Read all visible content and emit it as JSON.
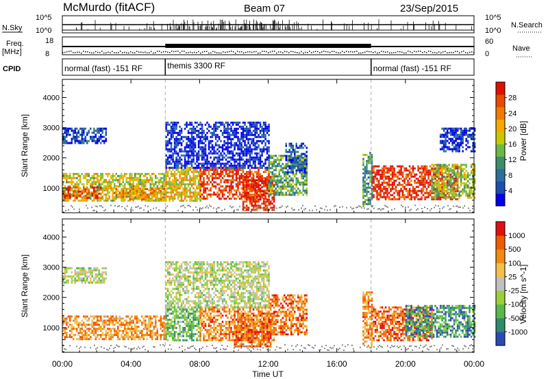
{
  "header": {
    "station": "McMurdo (fitACF)",
    "beam": "Beam 07",
    "date": "23/Sep/2015"
  },
  "top_panels": {
    "nsky_label": "N.Sky",
    "nsearch_label": "N.Search",
    "nsky_ticks": [
      "10^5",
      "10^0"
    ],
    "nsearch_ticks": [
      "10^5",
      "10^0"
    ],
    "freq_label": "Freq.",
    "freq_unit": "[MHz]",
    "freq_ticks": [
      "18",
      "8"
    ],
    "nave_label": "Nave",
    "nave_ticks": [
      "60",
      "0"
    ],
    "cpid_label": "CPID",
    "cpid_segments": [
      {
        "label": "normal (fast) -151 RF",
        "start_h": 0,
        "end_h": 6
      },
      {
        "label": "themis 3300 RF",
        "start_h": 6,
        "end_h": 18
      },
      {
        "label": "normal (fast) -151 RF",
        "start_h": 18,
        "end_h": 24
      }
    ]
  },
  "chart_data": [
    {
      "type": "heatmap",
      "ylabel": "Slant Range [km]",
      "xlabel": "Time UT",
      "x_range_hours": [
        0,
        24
      ],
      "ylim": [
        180,
        4600
      ],
      "y_ticks": [
        1000,
        2000,
        3000,
        4000
      ],
      "x_tick_labels": [
        "00:00",
        "04:00",
        "08:00",
        "12:00",
        "16:00",
        "20:00",
        "00:00"
      ],
      "colorbar": {
        "label": "Power [dB]",
        "ticks": [
          "4",
          "8",
          "12",
          "16",
          "20",
          "24",
          "28"
        ],
        "colors": [
          "#0000ee",
          "#1a4fb0",
          "#2c6e9e",
          "#3f8c6c",
          "#6cb845",
          "#c8c800",
          "#f5a800",
          "#f07a00",
          "#e84a00",
          "#e01000"
        ]
      },
      "blobs": [
        {
          "h0": 0.0,
          "h1": 6.0,
          "r0": 600,
          "r1": 1500,
          "v": 0.55
        },
        {
          "h0": 0.0,
          "h1": 2.2,
          "r0": 700,
          "r1": 1050,
          "v": 0.85
        },
        {
          "h0": 3.0,
          "h1": 6.0,
          "r0": 650,
          "r1": 1000,
          "v": 0.7
        },
        {
          "h0": 0.0,
          "h1": 2.5,
          "r0": 2500,
          "r1": 3000,
          "v": 0.15
        },
        {
          "h0": 6.0,
          "h1": 8.0,
          "r0": 550,
          "r1": 1700,
          "v": 0.6
        },
        {
          "h0": 8.0,
          "h1": 12.0,
          "r0": 650,
          "r1": 1700,
          "v": 0.9
        },
        {
          "h0": 10.5,
          "h1": 12.3,
          "r0": 300,
          "r1": 1400,
          "v": 0.95
        },
        {
          "h0": 12.0,
          "h1": 14.2,
          "r0": 800,
          "r1": 2100,
          "v": 0.4
        },
        {
          "h0": 13.0,
          "h1": 14.2,
          "r0": 1500,
          "r1": 2500,
          "v": 0.2
        },
        {
          "h0": 6.0,
          "h1": 12.0,
          "r0": 1700,
          "r1": 3200,
          "v": 0.08
        },
        {
          "h0": 18.0,
          "h1": 23.0,
          "r0": 600,
          "r1": 1750,
          "v": 0.92
        },
        {
          "h0": 17.5,
          "h1": 18.0,
          "r0": 400,
          "r1": 2200,
          "v": 0.35
        },
        {
          "h0": 21.5,
          "h1": 24.0,
          "r0": 700,
          "r1": 1800,
          "v": 0.5
        },
        {
          "h0": 22.0,
          "h1": 24.0,
          "r0": 2200,
          "r1": 3000,
          "v": 0.12
        }
      ]
    },
    {
      "type": "heatmap",
      "ylabel": "Slant Range [km]",
      "xlabel": "Time UT",
      "x_range_hours": [
        0,
        24
      ],
      "ylim": [
        180,
        4600
      ],
      "y_ticks": [
        1000,
        2000,
        3000,
        4000
      ],
      "x_tick_labels": [
        "00:00",
        "04:00",
        "08:00",
        "12:00",
        "16:00",
        "20:00",
        "00:00"
      ],
      "colorbar": {
        "label": "Velocity [m s^-1]",
        "ticks": [
          "1000",
          "500",
          "100",
          "25",
          "-25",
          "-100",
          "-500",
          "-1000"
        ],
        "colors": [
          "#2a4ab8",
          "#2f8a6a",
          "#58b84a",
          "#9ad03a",
          "#c0c0c0",
          "#f5c04a",
          "#f08a10",
          "#f05a00",
          "#e01010"
        ]
      },
      "blobs": [
        {
          "h0": 0.0,
          "h1": 6.0,
          "r0": 600,
          "r1": 1400,
          "v": 0.7
        },
        {
          "h0": 0.0,
          "h1": 2.5,
          "r0": 2500,
          "r1": 3000,
          "v": 0.45
        },
        {
          "h0": 6.0,
          "h1": 8.0,
          "r0": 550,
          "r1": 1700,
          "v": 0.3
        },
        {
          "h0": 8.0,
          "h1": 12.0,
          "r0": 600,
          "r1": 1700,
          "v": 0.75
        },
        {
          "h0": 10.0,
          "h1": 12.3,
          "r0": 350,
          "r1": 1500,
          "v": 0.8
        },
        {
          "h0": 12.0,
          "h1": 14.2,
          "r0": 800,
          "r1": 2100,
          "v": 0.78
        },
        {
          "h0": 6.0,
          "h1": 12.0,
          "r0": 1700,
          "r1": 3200,
          "v": 0.45
        },
        {
          "h0": 18.0,
          "h1": 21.5,
          "r0": 600,
          "r1": 1700,
          "v": 0.8
        },
        {
          "h0": 20.0,
          "h1": 24.0,
          "r0": 700,
          "r1": 1750,
          "v": 0.2
        },
        {
          "h0": 17.5,
          "h1": 18.0,
          "r0": 400,
          "r1": 2200,
          "v": 0.75
        }
      ]
    }
  ]
}
